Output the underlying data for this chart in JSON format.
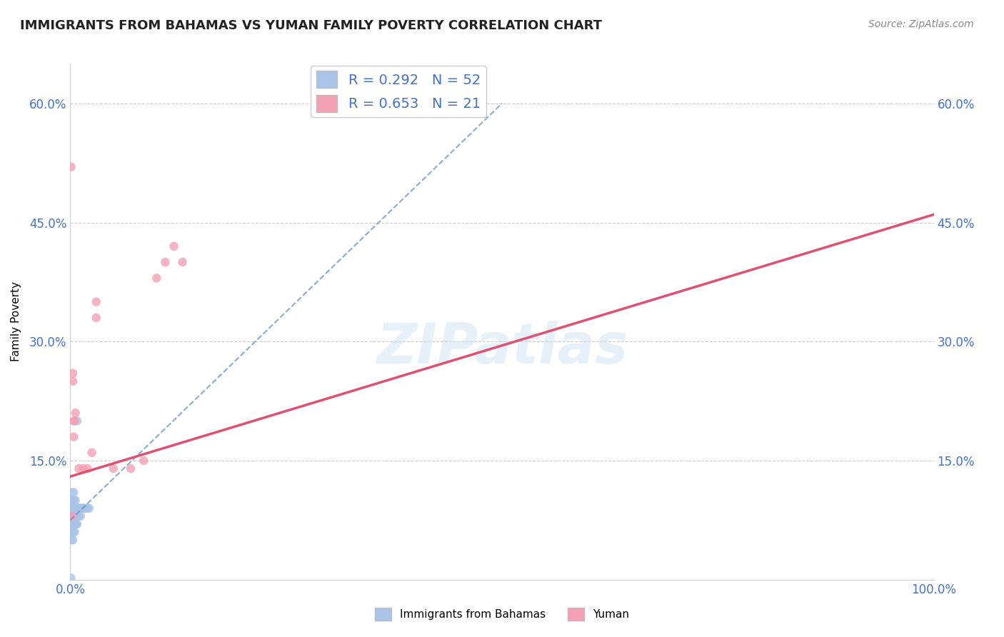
{
  "title": "IMMIGRANTS FROM BAHAMAS VS YUMAN FAMILY POVERTY CORRELATION CHART",
  "source_text": "Source: ZipAtlas.com",
  "ylabel": "Family Poverty",
  "xlim": [
    0,
    1.0
  ],
  "ylim": [
    0,
    0.65
  ],
  "ytick_positions": [
    0.0,
    0.15,
    0.3,
    0.45,
    0.6
  ],
  "ytick_labels": [
    "",
    "15.0%",
    "30.0%",
    "45.0%",
    "60.0%"
  ],
  "legend_label_blue": "Immigrants from Bahamas",
  "legend_label_pink": "Yuman",
  "R_blue": 0.292,
  "N_blue": 52,
  "R_pink": 0.653,
  "N_pink": 21,
  "blue_color": "#aac4e8",
  "pink_color": "#f4a0b5",
  "blue_line_color": "#5588cc",
  "pink_line_color": "#e05070",
  "watermark": "ZIPatlas",
  "blue_points_x": [
    0.001,
    0.001,
    0.001,
    0.001,
    0.002,
    0.002,
    0.002,
    0.002,
    0.002,
    0.002,
    0.002,
    0.003,
    0.003,
    0.003,
    0.003,
    0.003,
    0.003,
    0.004,
    0.004,
    0.004,
    0.004,
    0.004,
    0.005,
    0.005,
    0.005,
    0.005,
    0.005,
    0.006,
    0.006,
    0.006,
    0.006,
    0.007,
    0.007,
    0.007,
    0.008,
    0.008,
    0.008,
    0.009,
    0.009,
    0.01,
    0.01,
    0.011,
    0.012,
    0.012,
    0.013,
    0.014,
    0.015,
    0.016,
    0.018,
    0.02,
    0.022,
    0.001
  ],
  "blue_points_y": [
    0.06,
    0.07,
    0.08,
    0.09,
    0.05,
    0.06,
    0.07,
    0.08,
    0.09,
    0.1,
    0.11,
    0.05,
    0.06,
    0.07,
    0.08,
    0.09,
    0.1,
    0.06,
    0.07,
    0.08,
    0.09,
    0.11,
    0.06,
    0.07,
    0.08,
    0.09,
    0.1,
    0.07,
    0.08,
    0.09,
    0.1,
    0.07,
    0.08,
    0.09,
    0.07,
    0.08,
    0.2,
    0.08,
    0.09,
    0.08,
    0.09,
    0.09,
    0.08,
    0.09,
    0.09,
    0.09,
    0.09,
    0.09,
    0.09,
    0.09,
    0.09,
    0.002
  ],
  "pink_points_x": [
    0.001,
    0.002,
    0.003,
    0.003,
    0.004,
    0.004,
    0.005,
    0.006,
    0.01,
    0.015,
    0.02,
    0.025,
    0.03,
    0.03,
    0.05,
    0.07,
    0.085,
    0.1,
    0.11,
    0.12,
    0.13
  ],
  "pink_points_y": [
    0.52,
    0.08,
    0.25,
    0.26,
    0.18,
    0.2,
    0.2,
    0.21,
    0.14,
    0.14,
    0.14,
    0.16,
    0.33,
    0.35,
    0.14,
    0.14,
    0.15,
    0.38,
    0.4,
    0.42,
    0.4
  ],
  "blue_trendline_x": [
    0.0,
    0.5
  ],
  "blue_trendline_y": [
    0.075,
    0.6
  ],
  "pink_trendline_x": [
    0.0,
    1.0
  ],
  "pink_trendline_y": [
    0.13,
    0.46
  ]
}
